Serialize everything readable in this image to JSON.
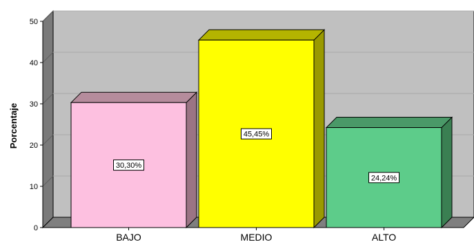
{
  "chart_data": {
    "type": "bar",
    "style": "3d",
    "categories": [
      "BAJO",
      "MEDIO",
      "ALTO"
    ],
    "values": [
      30.3,
      45.45,
      24.24
    ],
    "data_labels": [
      "30,30%",
      "45,45%",
      "24,24%"
    ],
    "ylabel": "Porcentaje",
    "xlabel": "",
    "ylim": [
      0,
      50
    ],
    "yticks": [
      0,
      10,
      20,
      30,
      40,
      50
    ],
    "ytick_labels": [
      "0",
      "10",
      "20",
      "30",
      "40",
      "50"
    ],
    "grid": true,
    "legend": "none",
    "colors": {
      "bars": [
        "#fdc0e0",
        "#ffff00",
        "#5dcc8a"
      ],
      "bar_sides": [
        "#9b7484",
        "#9a9a00",
        "#3a7f52"
      ],
      "bar_tops": [
        "#b58c9c",
        "#b4b400",
        "#4a9968"
      ],
      "wall": "#c0c0c0",
      "side_wall": "#7a7a7a",
      "floor": "#7f7f7f"
    }
  }
}
